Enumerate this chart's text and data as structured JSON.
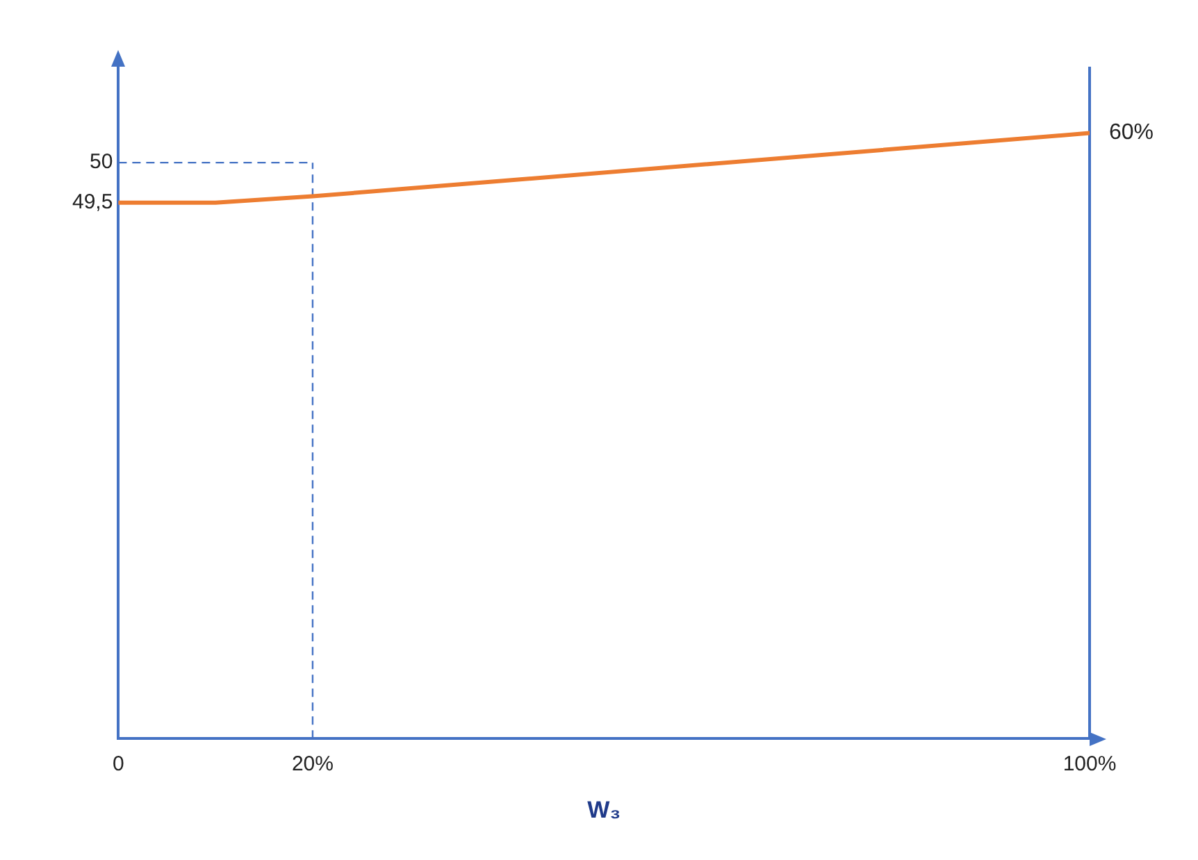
{
  "chart_data": {
    "type": "line",
    "xlabel": "W₃",
    "x": [
      0,
      10,
      20,
      100
    ],
    "series": [
      {
        "color": "#ed7d31",
        "values": [
          49.5,
          49.5,
          49.58,
          50.37
        ]
      }
    ],
    "xlim": [
      0,
      100
    ],
    "xticks": [
      {
        "value": 0,
        "label": "0"
      },
      {
        "value": 20,
        "label": "20%"
      },
      {
        "value": 100,
        "label": "100%"
      }
    ],
    "ylim": [
      42.8,
      51.2
    ],
    "yticks": [
      {
        "value": 49.5,
        "label": "49,5"
      },
      50
    ],
    "ref_lines": [
      {
        "axis": "x",
        "value": 20,
        "color": "#4472c4",
        "line_style": "dashed"
      },
      {
        "axis": "y",
        "value": 50,
        "color": "#4472c4",
        "line_style": "dashed"
      },
      {
        "axis": "x",
        "value": 100,
        "color": "#4472c4",
        "line_style": "solid"
      }
    ],
    "annotations": [
      {
        "text": "60%",
        "x": 100,
        "y": 50.37
      }
    ],
    "grid": false,
    "legend": false,
    "marker": "none",
    "line_style": "solid"
  }
}
